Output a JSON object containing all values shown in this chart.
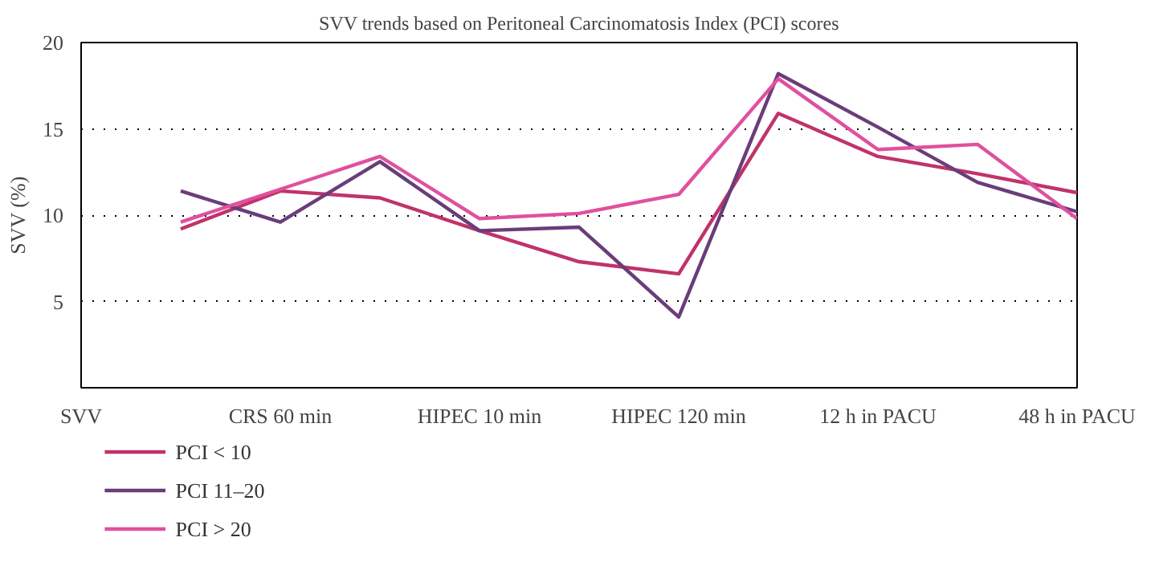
{
  "chart_data": {
    "type": "line",
    "title": "SVV trends based on Peritoneal Carcinomatosis Index (PCI) scores",
    "ylabel": "SVV (%)",
    "categories": [
      "SVV",
      null,
      "CRS 60 min",
      null,
      "HIPEC 10 min",
      null,
      "HIPEC 120 min",
      null,
      "12 h in PACU",
      null,
      "48 h in PACU"
    ],
    "ylim": [
      0,
      20
    ],
    "yticks": [
      5,
      10,
      15,
      20
    ],
    "grid": "y",
    "legend": "bottom left",
    "line_style": "solid",
    "series": [
      {
        "name": "PCI < 10",
        "color": "#c0336a",
        "values": [
          null,
          9.2,
          11.4,
          11.0,
          9.1,
          7.3,
          6.6,
          15.9,
          13.4,
          12.4,
          11.3
        ]
      },
      {
        "name": "PCI 11–20",
        "color": "#6a3d7a",
        "values": [
          null,
          11.4,
          9.6,
          13.1,
          9.1,
          9.3,
          4.1,
          18.2,
          15.1,
          11.9,
          10.2
        ]
      },
      {
        "name": "PCI > 20",
        "color": "#e0509f",
        "values": [
          null,
          9.6,
          11.5,
          13.4,
          9.8,
          10.1,
          11.2,
          17.9,
          13.8,
          14.1,
          9.8
        ]
      }
    ]
  }
}
